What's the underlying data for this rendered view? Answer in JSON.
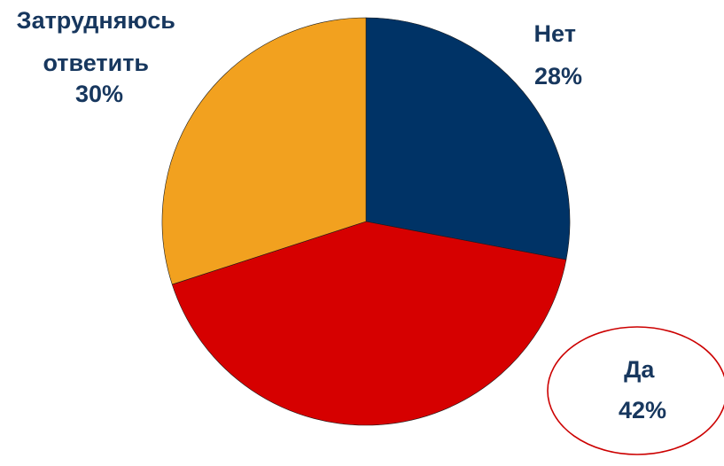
{
  "chart_data": {
    "type": "pie",
    "slices": [
      {
        "category": "Нет",
        "label": "Нет",
        "value": 28,
        "value_label": "28%",
        "color": "#003366"
      },
      {
        "category": "Да",
        "label": "Да",
        "value": 42,
        "value_label": "42%",
        "color": "#d60000"
      },
      {
        "category": "Затрудняюсь ответить",
        "label_lines": [
          "Затрудняюсь",
          "ответить"
        ],
        "value": 30,
        "value_label": "30%",
        "color": "#f2a11f"
      }
    ],
    "start": "12 o'clock",
    "direction": "clockwise",
    "highlight": {
      "category": "Да",
      "shape": "ellipse",
      "color": "#cc0000"
    }
  },
  "colors": {
    "label_text": "#17375e"
  }
}
